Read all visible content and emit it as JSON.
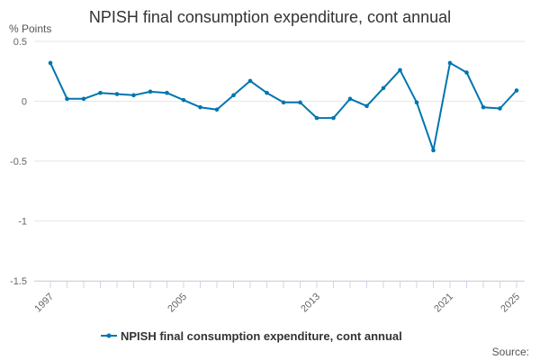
{
  "chart_data": {
    "type": "line",
    "title": "NPISH final consumption expenditure, cont annual",
    "ylabel": "% Points",
    "xlabel": "",
    "ylim": [
      -1.5,
      0.5
    ],
    "yticks": [
      0.5,
      0,
      -0.5,
      -1,
      -1.5
    ],
    "ytick_labels": [
      "0.5",
      "0",
      "-0.5",
      "-1",
      "-1.5"
    ],
    "x": [
      1997,
      1998,
      1999,
      2000,
      2001,
      2002,
      2003,
      2004,
      2005,
      2006,
      2007,
      2008,
      2009,
      2010,
      2011,
      2012,
      2013,
      2014,
      2015,
      2016,
      2017,
      2018,
      2019,
      2020,
      2021,
      2022,
      2023,
      2024,
      2025
    ],
    "xticks_labeled": [
      1997,
      2005,
      2013,
      2021,
      2025
    ],
    "grid": true,
    "series": [
      {
        "name": "NPISH final consumption expenditure, cont annual",
        "color": "#0075b0",
        "values": [
          0.32,
          0.02,
          0.02,
          0.07,
          0.06,
          0.05,
          0.08,
          0.07,
          0.01,
          -0.05,
          -0.07,
          0.05,
          0.17,
          0.07,
          -0.01,
          -0.01,
          -0.14,
          -0.14,
          0.02,
          -0.04,
          0.11,
          0.26,
          -0.01,
          -0.41,
          0.32,
          0.24,
          -0.05,
          -0.06,
          0.09
        ]
      }
    ],
    "legend": "bottom-center"
  },
  "credit": "Source:"
}
